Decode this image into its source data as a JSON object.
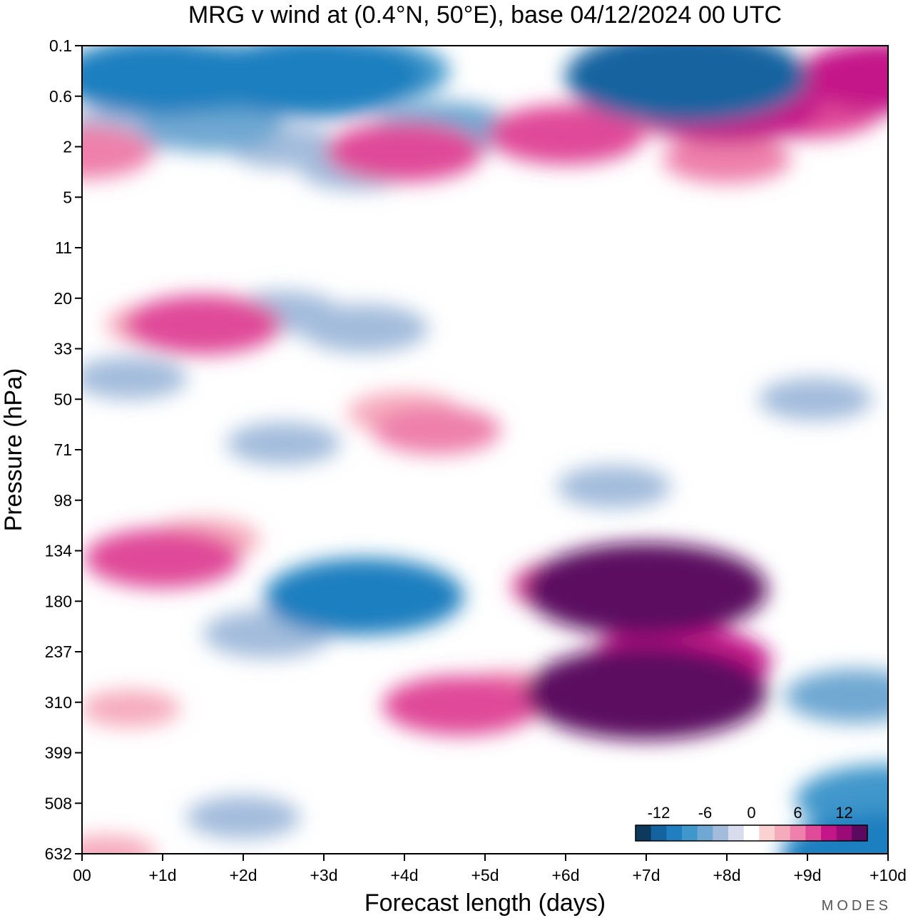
{
  "chart_data": {
    "type": "heatmap",
    "title": "MRG v wind at (0.4°N, 50°E),  base 04/12/2024  00 UTC",
    "xlabel": "Forecast length (days)",
    "ylabel": "Pressure (hPa)",
    "x_ticks": [
      "00",
      "+1d",
      "+2d",
      "+3d",
      "+4d",
      "+5d",
      "+6d",
      "+7d",
      "+8d",
      "+9d",
      "+10d"
    ],
    "x_range_days": [
      0,
      10
    ],
    "y_ticks": [
      "0.1",
      "0.6",
      "2",
      "5",
      "11",
      "20",
      "33",
      "50",
      "71",
      "98",
      "134",
      "180",
      "237",
      "310",
      "399",
      "508",
      "632"
    ],
    "y_range_hpa": [
      0.1,
      632
    ],
    "y_scale": "log (top to bottom, increasing pressure)",
    "colorbar": {
      "tick_labels": [
        "-12",
        "-6",
        "0",
        "6",
        "12"
      ],
      "levels": [
        -15,
        -13,
        -11,
        -9,
        -7,
        -5,
        -3,
        -1,
        1,
        3,
        5,
        7,
        9,
        11,
        13,
        15
      ],
      "colors": [
        "#0d3a5c",
        "#1363a0",
        "#1f7fbf",
        "#3f97cb",
        "#6fa8d2",
        "#a3bcdc",
        "#d9dcec",
        "#ffffff",
        "#fbd2d2",
        "#f6abbd",
        "#ee80ab",
        "#e04a99",
        "#c41689",
        "#9a0b78",
        "#5c0a60"
      ],
      "placement": "bottom-right"
    },
    "features": [
      {
        "day": 0.95,
        "hpa": 0.3,
        "value": -10
      },
      {
        "day": 1.7,
        "hpa": 0.32,
        "value": -9
      },
      {
        "day": 2.9,
        "hpa": 0.3,
        "value": -11
      },
      {
        "day": 3.5,
        "hpa": 0.25,
        "value": -8
      },
      {
        "day": 7.5,
        "hpa": 0.3,
        "value": -13
      },
      {
        "day": 1.6,
        "hpa": 1.2,
        "value": -6
      },
      {
        "day": 0.5,
        "hpa": 1.4,
        "value": -5
      },
      {
        "day": 2.5,
        "hpa": 2.0,
        "value": -4
      },
      {
        "day": 4.5,
        "hpa": 1.3,
        "value": -6
      },
      {
        "day": 3.4,
        "hpa": 3.0,
        "value": -4
      },
      {
        "day": 10.0,
        "hpa": 0.3,
        "value": 9
      },
      {
        "day": 7.1,
        "hpa": 0.8,
        "value": 6
      },
      {
        "day": 8.0,
        "hpa": 0.8,
        "value": 9
      },
      {
        "day": 9.0,
        "hpa": 0.8,
        "value": 7
      },
      {
        "day": 8.0,
        "hpa": 2.5,
        "value": 5
      },
      {
        "day": 6.0,
        "hpa": 1.5,
        "value": 7
      },
      {
        "day": 4.0,
        "hpa": 2.2,
        "value": 7
      },
      {
        "day": 0.0,
        "hpa": 2.2,
        "value": 6
      },
      {
        "day": 1.5,
        "hpa": 26,
        "value": 7
      },
      {
        "day": 1.0,
        "hpa": 26,
        "value": 4
      },
      {
        "day": 3.5,
        "hpa": 27,
        "value": -5
      },
      {
        "day": 2.5,
        "hpa": 23,
        "value": -4
      },
      {
        "day": 4.4,
        "hpa": 62,
        "value": 5
      },
      {
        "day": 4.0,
        "hpa": 55,
        "value": 4
      },
      {
        "day": 0.6,
        "hpa": 42,
        "value": -4
      },
      {
        "day": 2.5,
        "hpa": 68,
        "value": -4
      },
      {
        "day": 6.6,
        "hpa": 90,
        "value": -4
      },
      {
        "day": 9.1,
        "hpa": 50,
        "value": -4
      },
      {
        "day": 1.0,
        "hpa": 140,
        "value": 7
      },
      {
        "day": 1.5,
        "hpa": 125,
        "value": 4
      },
      {
        "day": 3.5,
        "hpa": 175,
        "value": -10
      },
      {
        "day": 3.3,
        "hpa": 185,
        "value": -7
      },
      {
        "day": 2.3,
        "hpa": 215,
        "value": -5
      },
      {
        "day": 7.0,
        "hpa": 168,
        "value": 13
      },
      {
        "day": 7.0,
        "hpa": 295,
        "value": 13
      },
      {
        "day": 6.3,
        "hpa": 165,
        "value": 7
      },
      {
        "day": 7.4,
        "hpa": 250,
        "value": 9
      },
      {
        "day": 4.7,
        "hpa": 315,
        "value": 7
      },
      {
        "day": 5.3,
        "hpa": 300,
        "value": 5
      },
      {
        "day": 0.6,
        "hpa": 320,
        "value": 3
      },
      {
        "day": 9.6,
        "hpa": 300,
        "value": -6
      },
      {
        "day": 10.0,
        "hpa": 500,
        "value": -9
      },
      {
        "day": 10.0,
        "hpa": 632,
        "value": -11
      },
      {
        "day": 2.0,
        "hpa": 540,
        "value": -4
      },
      {
        "day": 0.3,
        "hpa": 632,
        "value": 3
      }
    ]
  },
  "logo": "MODES"
}
